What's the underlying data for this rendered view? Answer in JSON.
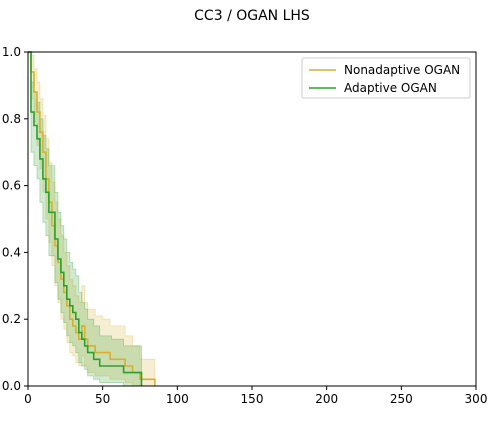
{
  "chart_data": {
    "type": "line",
    "title": "CC3 / OGAN LHS",
    "xlabel": "",
    "ylabel": "",
    "xlim": [
      0,
      300
    ],
    "ylim": [
      0.0,
      1.0
    ],
    "x_ticks": [
      "0",
      "50",
      "100",
      "150",
      "200",
      "250",
      "300"
    ],
    "y_ticks": [
      "0.0",
      "0.2",
      "0.4",
      "0.6",
      "0.8",
      "1.0"
    ],
    "grid": false,
    "legend_position": "top-right",
    "series": [
      {
        "name": "Nonadaptive OGAN",
        "color": "#d4b230",
        "step": true,
        "x": [
          0,
          2,
          4,
          6,
          8,
          10,
          12,
          14,
          16,
          18,
          20,
          22,
          24,
          26,
          28,
          30,
          32,
          34,
          36,
          38,
          40,
          45,
          50,
          55,
          60,
          65,
          70,
          75,
          80,
          85
        ],
        "y": [
          1.0,
          0.94,
          0.88,
          0.82,
          0.76,
          0.7,
          0.62,
          0.55,
          0.48,
          0.42,
          0.37,
          0.32,
          0.28,
          0.24,
          0.2,
          0.18,
          0.16,
          0.14,
          0.18,
          0.14,
          0.12,
          0.1,
          0.1,
          0.08,
          0.08,
          0.06,
          0.04,
          0.02,
          0.02,
          0.0
        ],
        "ci_lower": [
          1.0,
          0.86,
          0.79,
          0.72,
          0.65,
          0.58,
          0.5,
          0.43,
          0.36,
          0.3,
          0.25,
          0.2,
          0.17,
          0.13,
          0.1,
          0.09,
          0.07,
          0.06,
          0.09,
          0.06,
          0.04,
          0.03,
          0.03,
          0.02,
          0.02,
          0.01,
          0.0,
          0.0,
          0.0,
          0.0
        ],
        "ci_upper": [
          1.0,
          0.99,
          0.95,
          0.91,
          0.86,
          0.81,
          0.74,
          0.67,
          0.61,
          0.55,
          0.5,
          0.45,
          0.4,
          0.36,
          0.32,
          0.3,
          0.27,
          0.25,
          0.3,
          0.25,
          0.23,
          0.21,
          0.2,
          0.18,
          0.18,
          0.15,
          0.12,
          0.08,
          0.08,
          0.0
        ]
      },
      {
        "name": "Adaptive OGAN",
        "color": "#2ca02c",
        "step": true,
        "x": [
          0,
          2,
          4,
          6,
          8,
          10,
          12,
          14,
          16,
          18,
          20,
          22,
          24,
          26,
          28,
          30,
          32,
          34,
          36,
          38,
          40,
          44,
          48,
          52,
          56,
          60,
          64,
          68,
          72,
          76
        ],
        "y": [
          1.0,
          0.82,
          0.78,
          0.74,
          0.68,
          0.62,
          0.58,
          0.52,
          0.52,
          0.44,
          0.38,
          0.34,
          0.3,
          0.26,
          0.24,
          0.22,
          0.2,
          0.16,
          0.14,
          0.12,
          0.1,
          0.08,
          0.06,
          0.06,
          0.06,
          0.06,
          0.04,
          0.04,
          0.04,
          0.0
        ],
        "ci_lower": [
          1.0,
          0.7,
          0.66,
          0.62,
          0.55,
          0.49,
          0.45,
          0.39,
          0.39,
          0.31,
          0.26,
          0.22,
          0.19,
          0.15,
          0.13,
          0.12,
          0.1,
          0.07,
          0.06,
          0.05,
          0.03,
          0.02,
          0.01,
          0.01,
          0.01,
          0.01,
          0.0,
          0.0,
          0.0,
          0.0
        ],
        "ci_upper": [
          1.0,
          0.91,
          0.88,
          0.85,
          0.8,
          0.75,
          0.71,
          0.66,
          0.66,
          0.58,
          0.52,
          0.48,
          0.44,
          0.4,
          0.37,
          0.35,
          0.33,
          0.28,
          0.25,
          0.23,
          0.2,
          0.18,
          0.15,
          0.15,
          0.14,
          0.14,
          0.12,
          0.12,
          0.12,
          0.0
        ]
      }
    ]
  }
}
